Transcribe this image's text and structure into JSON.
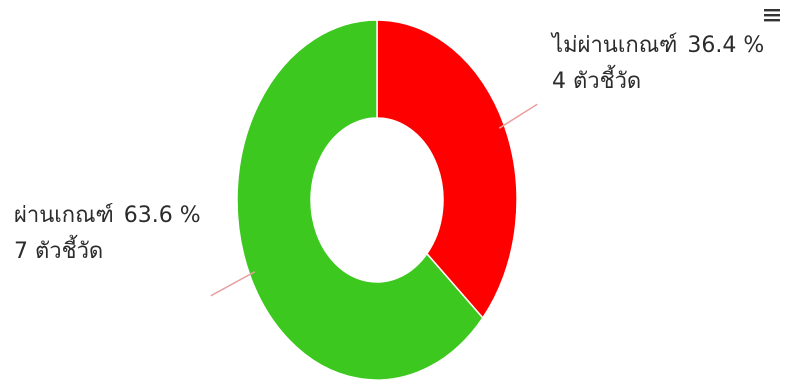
{
  "chart_data": {
    "type": "pie",
    "variant": "donut",
    "title": "",
    "slices": [
      {
        "name": "ไม่ผ่านเกณฑ์",
        "percent_label": "36.4 %",
        "count_label": "4 ตัวชี้วัด",
        "value": 4,
        "percent": 36.4,
        "color": "#ff0000"
      },
      {
        "name": "ผ่านเกณฑ์",
        "percent_label": "63.6 %",
        "count_label": "7 ตัวชี้วัด",
        "value": 7,
        "percent": 63.6,
        "color": "#3cc81e"
      }
    ],
    "start": "12 o'clock",
    "direction": "clockwise",
    "slice_border_color": "#ffffff",
    "leader_line_color": "#e8a0a0",
    "legend": "none"
  },
  "icons": {
    "menu": "menu-icon"
  }
}
